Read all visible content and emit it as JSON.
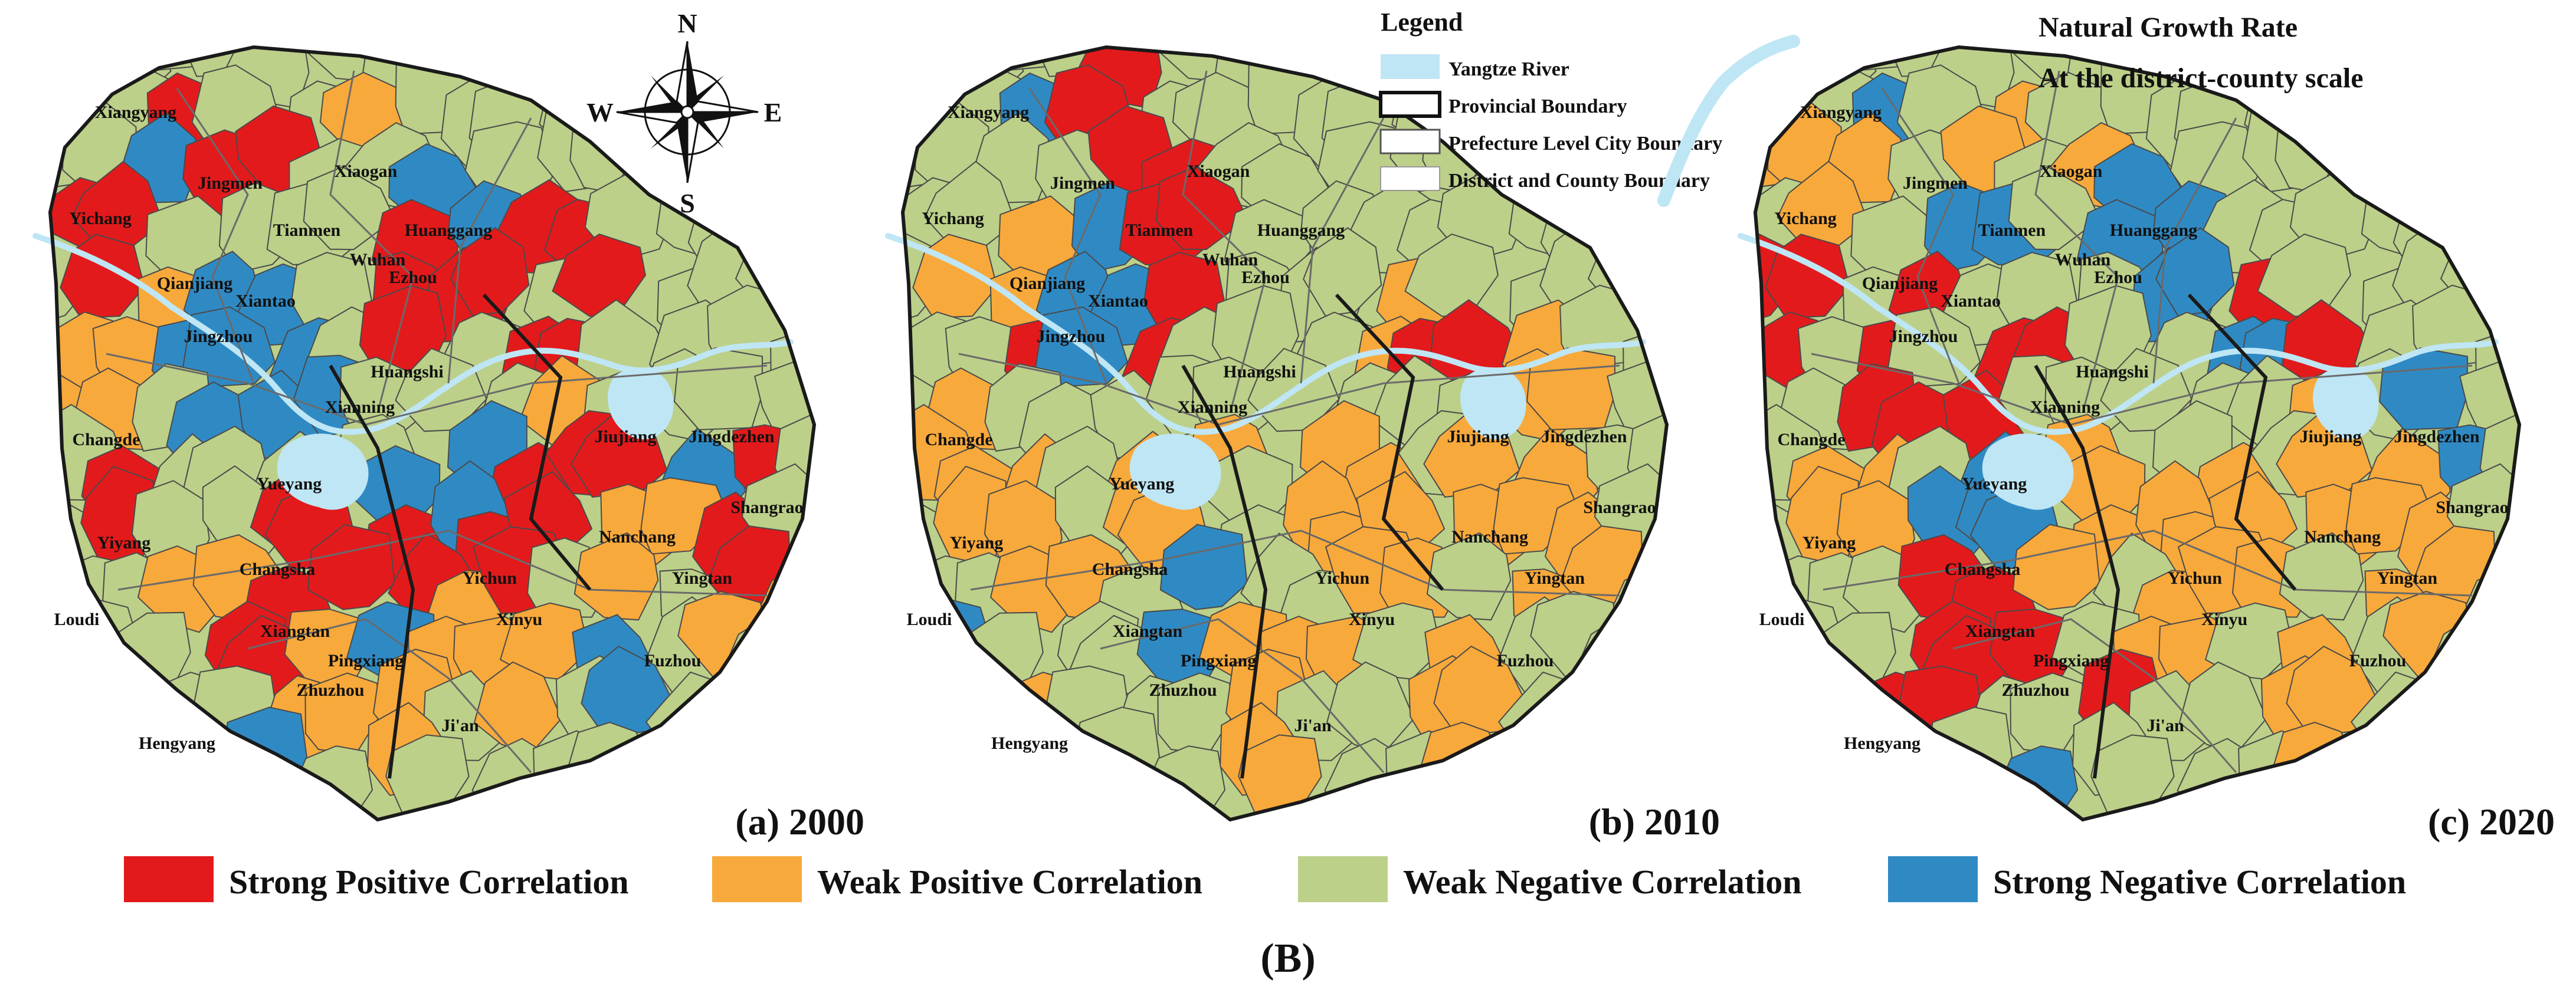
{
  "title": {
    "line1": "Natural Growth Rate",
    "line2": "At the district-county scale"
  },
  "compass": {
    "n": "N",
    "s": "S",
    "e": "E",
    "w": "W"
  },
  "legend": {
    "title": "Legend",
    "items": [
      {
        "label": "Yangtze River",
        "kind": "river",
        "color": "#bfe6f5"
      },
      {
        "label": "Provincial Boundary",
        "kind": "provincial"
      },
      {
        "label": "Prefecture Level City Boundary",
        "kind": "prefecture"
      },
      {
        "label": "District and County Boundary",
        "kind": "district"
      }
    ]
  },
  "classes": [
    {
      "key": "sp",
      "label": "Strong Positive Correlation",
      "color": "#e31a1c"
    },
    {
      "key": "wp",
      "label": "Weak Positive Correlation",
      "color": "#f8a93b"
    },
    {
      "key": "wn",
      "label": "Weak Negative Correlation",
      "color": "#bcd089"
    },
    {
      "key": "sn",
      "label": "Strong Negative Correlation",
      "color": "#2f8ac4"
    }
  ],
  "panels": [
    {
      "caption": "(a)  2000",
      "year": "2000"
    },
    {
      "caption": "(b)  2010",
      "year": "2010"
    },
    {
      "caption": "(c)  2020",
      "year": "2020"
    }
  ],
  "figure_label": "(B)",
  "cities": [
    "Xiangyang",
    "Jingmen",
    "Xiaogan",
    "Huanggang",
    "Yichang",
    "Tianmen",
    "Wuhan",
    "Ezhou",
    "Qianjiang",
    "Xiantao",
    "Jingzhou",
    "Huangshi",
    "Xianning",
    "Changde",
    "Jiujiang",
    "Jingdezhen",
    "Yueyang",
    "Shangrao",
    "Nanchang",
    "Yiyang",
    "Changsha",
    "Yichun",
    "Yingtan",
    "Loudi",
    "Xiangtan",
    "Xinyu",
    "Pingxiang",
    "Fuzhou",
    "Zhuzhou",
    "Ji'an",
    "Hengyang"
  ]
}
